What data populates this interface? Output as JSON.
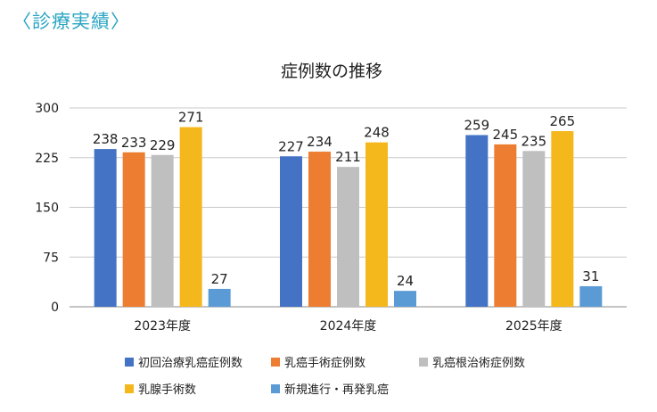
{
  "heading": "〈診療実績〉",
  "chart_data": {
    "type": "bar",
    "title": "症例数の推移",
    "categories": [
      "2023年度",
      "2024年度",
      "2025年度"
    ],
    "ylim": [
      0,
      300
    ],
    "yticks": [
      "0",
      "75",
      "150",
      "225",
      "300"
    ],
    "grid": true,
    "legend_position": "bottom",
    "series": [
      {
        "name": "初回治療乳癌症例数",
        "color": "#4472c4",
        "values": [
          238,
          227,
          259
        ]
      },
      {
        "name": "乳癌手術症例数",
        "color": "#ed7d31",
        "values": [
          233,
          234,
          245
        ]
      },
      {
        "name": "乳癌根治術症例数",
        "color": "#bfbfbf",
        "values": [
          229,
          211,
          235
        ]
      },
      {
        "name": "乳腺手術数",
        "color": "#f5b81c",
        "values": [
          271,
          248,
          265
        ]
      },
      {
        "name": "新規進行・再発乳癌",
        "color": "#5b9bd5",
        "values": [
          27,
          24,
          31
        ]
      }
    ]
  }
}
